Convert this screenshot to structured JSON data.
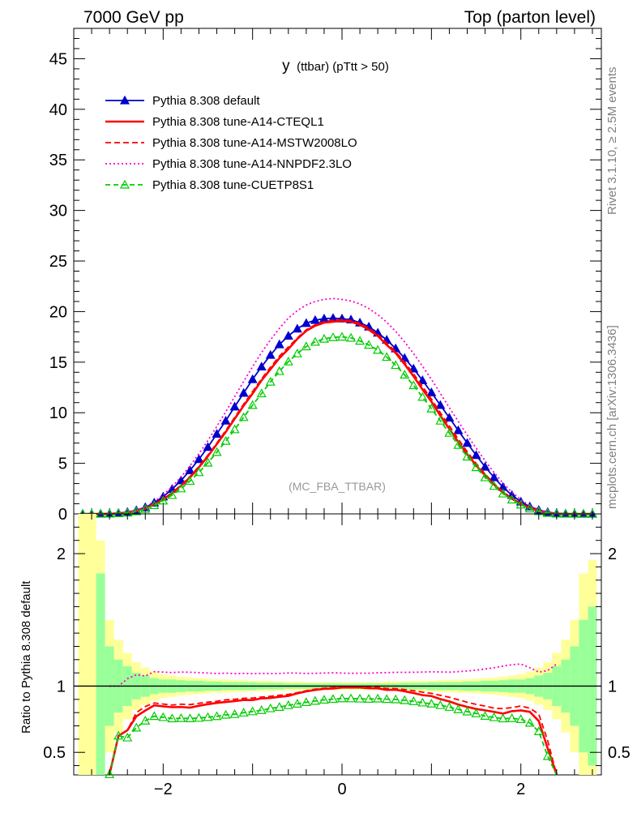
{
  "header": {
    "left": "7000 GeV pp",
    "right": "Top (parton level)"
  },
  "side_labels": {
    "rivet": "Rivet 3.1.10, ≥ 2.5M events",
    "mcplots": "mcplots.cern.ch [arXiv:1306.3436]"
  },
  "chart_data": {
    "type": "line",
    "title_main": "y",
    "title_sub": "(ttbar) (pTtt > 50)",
    "watermark": "(MC_FBA_TTBAR)",
    "xlim": [
      -3.0,
      2.9
    ],
    "ylim": [
      0,
      48
    ],
    "ratio_ylim": [
      0.33,
      2.3
    ],
    "ratio_ylabel": "Ratio to Pythia 8.308 default",
    "xticks": [
      -2,
      0,
      2
    ],
    "xtick_labels": [
      "−2",
      "0",
      "2"
    ],
    "yticks": [
      0,
      5,
      10,
      15,
      20,
      25,
      30,
      35,
      40,
      45
    ],
    "ytick_labels": [
      "0",
      "5",
      "10",
      "15",
      "20",
      "25",
      "30",
      "35",
      "40",
      "45"
    ],
    "ratio_yticks": [
      0.5,
      1,
      2
    ],
    "ratio_ytick_labels": [
      "0.5",
      "1",
      "2"
    ],
    "x": [
      -2.9,
      -2.8,
      -2.7,
      -2.6,
      -2.5,
      -2.4,
      -2.3,
      -2.2,
      -2.1,
      -2.0,
      -1.9,
      -1.8,
      -1.7,
      -1.6,
      -1.5,
      -1.4,
      -1.3,
      -1.2,
      -1.1,
      -1.0,
      -0.9,
      -0.8,
      -0.7,
      -0.6,
      -0.5,
      -0.4,
      -0.3,
      -0.2,
      -0.1,
      0.0,
      0.1,
      0.2,
      0.3,
      0.4,
      0.5,
      0.6,
      0.7,
      0.8,
      0.9,
      1.0,
      1.1,
      1.2,
      1.3,
      1.4,
      1.5,
      1.6,
      1.7,
      1.8,
      1.9,
      2.0,
      2.1,
      2.2,
      2.3,
      2.4,
      2.5,
      2.6,
      2.7,
      2.8
    ],
    "series": [
      {
        "name": "Pythia 8.308 default",
        "color": "#0000cc",
        "dash": "",
        "marker": "triangle-filled",
        "values": [
          0.0,
          0.0,
          0.01,
          0.03,
          0.08,
          0.18,
          0.35,
          0.65,
          1.1,
          1.7,
          2.45,
          3.3,
          4.3,
          5.4,
          6.6,
          7.9,
          9.2,
          10.6,
          11.95,
          13.3,
          14.55,
          15.7,
          16.75,
          17.6,
          18.3,
          18.85,
          19.15,
          19.3,
          19.35,
          19.3,
          19.2,
          18.9,
          18.5,
          17.9,
          17.2,
          16.35,
          15.4,
          14.35,
          13.2,
          12.0,
          10.75,
          9.5,
          8.25,
          7.0,
          5.8,
          4.65,
          3.6,
          2.65,
          1.85,
          1.2,
          0.72,
          0.38,
          0.17,
          0.06,
          0.02,
          0.01,
          0.0,
          0.0
        ]
      },
      {
        "name": "Pythia 8.308 tune-A14-CTEQL1",
        "color": "#ff0000",
        "dash": "",
        "marker": "none",
        "values": [
          0.0,
          0.0,
          0.0,
          0.01,
          0.05,
          0.12,
          0.27,
          0.53,
          0.94,
          1.44,
          2.06,
          2.78,
          3.6,
          4.6,
          5.7,
          6.9,
          8.1,
          9.4,
          10.7,
          11.9,
          13.2,
          14.3,
          15.4,
          16.3,
          17.3,
          18.1,
          18.6,
          18.9,
          19.0,
          19.1,
          19.0,
          18.7,
          18.2,
          17.6,
          16.7,
          15.9,
          14.8,
          13.6,
          12.3,
          11.1,
          9.7,
          8.4,
          7.1,
          5.9,
          4.8,
          3.8,
          2.9,
          2.1,
          1.5,
          0.98,
          0.58,
          0.28,
          0.09,
          0.02,
          0.0,
          0.0,
          0.0,
          0.0
        ]
      },
      {
        "name": "Pythia 8.308 tune-A14-MSTW2008LO",
        "color": "#ff0000",
        "dash": "7,4",
        "marker": "none",
        "values": [
          0.0,
          0.0,
          0.0,
          0.01,
          0.05,
          0.12,
          0.28,
          0.55,
          0.96,
          1.47,
          2.1,
          2.85,
          3.7,
          4.7,
          5.8,
          7.0,
          8.25,
          9.55,
          10.85,
          12.1,
          13.35,
          14.5,
          15.6,
          16.5,
          17.4,
          18.2,
          18.7,
          19.0,
          19.15,
          19.2,
          19.1,
          18.85,
          18.35,
          17.75,
          16.9,
          16.05,
          15.0,
          13.85,
          12.6,
          11.35,
          10.0,
          8.7,
          7.4,
          6.15,
          5.0,
          3.95,
          3.0,
          2.2,
          1.55,
          1.02,
          0.6,
          0.3,
          0.1,
          0.02,
          0.0,
          0.0,
          0.0,
          0.0
        ]
      },
      {
        "name": "Pythia 8.308 tune-A14-NNPDF2.3LO",
        "color": "#ff00cc",
        "dash": "2,3",
        "marker": "none",
        "values": [
          0.0,
          0.0,
          0.01,
          0.03,
          0.08,
          0.19,
          0.38,
          0.7,
          1.22,
          1.88,
          2.7,
          3.65,
          4.75,
          5.95,
          7.25,
          8.65,
          10.1,
          11.6,
          13.1,
          14.55,
          15.95,
          17.2,
          18.35,
          19.35,
          20.1,
          20.65,
          21.0,
          21.2,
          21.3,
          21.2,
          21.05,
          20.75,
          20.3,
          19.7,
          18.95,
          18.05,
          17.0,
          15.85,
          14.6,
          13.3,
          11.9,
          10.5,
          9.15,
          7.8,
          6.5,
          5.25,
          4.1,
          3.05,
          2.15,
          1.4,
          0.82,
          0.42,
          0.19,
          0.07,
          0.03,
          0.01,
          0.01,
          0.0
        ]
      },
      {
        "name": "Pythia 8.308 tune-CUETP8S1",
        "color": "#00cc00",
        "dash": "6,4",
        "marker": "triangle-open",
        "values": [
          0.0,
          0.0,
          0.0,
          0.01,
          0.05,
          0.11,
          0.24,
          0.48,
          0.85,
          1.3,
          1.85,
          2.5,
          3.25,
          4.1,
          5.05,
          6.1,
          7.2,
          8.35,
          9.55,
          10.75,
          11.9,
          13.05,
          14.1,
          15.05,
          15.85,
          16.55,
          17.0,
          17.3,
          17.45,
          17.5,
          17.4,
          17.1,
          16.7,
          16.2,
          15.5,
          14.7,
          13.75,
          12.7,
          11.55,
          10.4,
          9.2,
          8.0,
          6.8,
          5.65,
          4.6,
          3.6,
          2.75,
          2.0,
          1.4,
          0.9,
          0.52,
          0.25,
          0.08,
          0.01,
          0.0,
          0.0,
          0.0,
          0.0
        ]
      }
    ],
    "ratio_band_inner": [
      0.0,
      0.6,
      1.85,
      1.3,
      1.2,
      1.15,
      1.1,
      1.08,
      1.06,
      1.05,
      1.05,
      1.045,
      1.04,
      1.04,
      1.035,
      1.035,
      1.03,
      1.03,
      1.03,
      1.03,
      1.025,
      1.025,
      1.025,
      1.02,
      1.02,
      1.02,
      1.02,
      1.02,
      1.02,
      1.02,
      1.02,
      1.02,
      1.02,
      1.02,
      1.02,
      1.02,
      1.025,
      1.025,
      1.025,
      1.03,
      1.03,
      1.03,
      1.03,
      1.035,
      1.035,
      1.04,
      1.04,
      1.045,
      1.05,
      1.05,
      1.06,
      1.08,
      1.1,
      1.15,
      1.2,
      1.3,
      1.5,
      1.6
    ],
    "ratio_band_outer": [
      2.3,
      2.3,
      2.1,
      1.5,
      1.35,
      1.25,
      1.18,
      1.14,
      1.11,
      1.09,
      1.08,
      1.07,
      1.065,
      1.06,
      1.055,
      1.05,
      1.05,
      1.045,
      1.045,
      1.04,
      1.04,
      1.04,
      1.035,
      1.035,
      1.035,
      1.03,
      1.03,
      1.03,
      1.03,
      1.03,
      1.03,
      1.03,
      1.03,
      1.03,
      1.035,
      1.035,
      1.035,
      1.04,
      1.04,
      1.04,
      1.045,
      1.045,
      1.05,
      1.05,
      1.055,
      1.06,
      1.065,
      1.07,
      1.08,
      1.09,
      1.11,
      1.14,
      1.18,
      1.25,
      1.35,
      1.5,
      1.85,
      1.95
    ]
  }
}
